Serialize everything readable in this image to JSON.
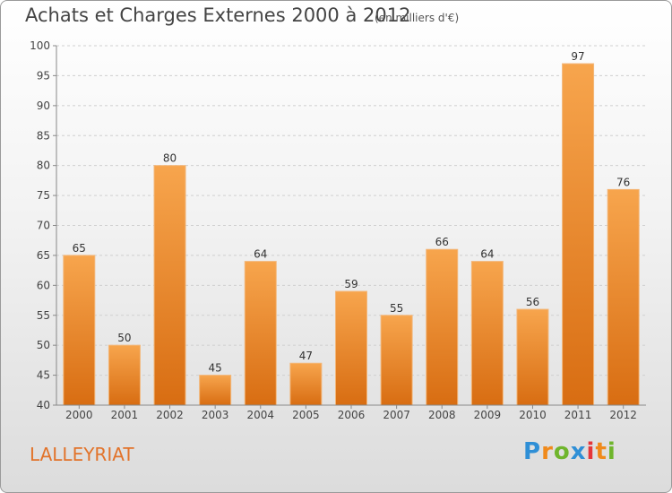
{
  "header": {
    "title": "Achats et Charges Externes 2000 à 2012",
    "subtitle": "(en milliers d'€)"
  },
  "footer": {
    "city": "LALLEYRIAT",
    "logo_text": "Proxiti"
  },
  "colors": {
    "bar_top": "#f7a54d",
    "bar_bottom": "#d86d12",
    "city_text": "#e2732a"
  },
  "chart_data": {
    "type": "bar",
    "title": "Achats et Charges Externes 2000 à 2012",
    "subtitle": "(en milliers d'€)",
    "xlabel": "",
    "ylabel": "",
    "categories": [
      "2000",
      "2001",
      "2002",
      "2003",
      "2004",
      "2005",
      "2006",
      "2007",
      "2008",
      "2009",
      "2010",
      "2011",
      "2012"
    ],
    "values": [
      65,
      50,
      80,
      45,
      64,
      47,
      59,
      55,
      66,
      64,
      56,
      97,
      76
    ],
    "ylim": [
      40,
      100
    ],
    "yticks": [
      40,
      45,
      50,
      55,
      60,
      65,
      70,
      75,
      80,
      85,
      90,
      95,
      100
    ],
    "grid": true,
    "legend": "none"
  }
}
